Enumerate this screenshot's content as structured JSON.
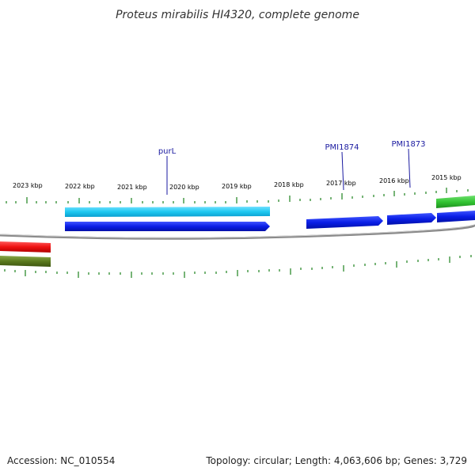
{
  "title": "Proteus mirabilis HI4320, complete genome",
  "footer": {
    "accession": "Accession: NC_010554",
    "summary": "Topology: circular; Length: 4,063,606 bp; Genes: 3,729"
  },
  "scale_labels": [
    "2023 kbp",
    "2022 kbp",
    "2021 kbp",
    "2020 kbp",
    "2019 kbp",
    "2018 kbp",
    "2017 kbp",
    "2016 kbp",
    "2015 kbp"
  ],
  "gene_labels": [
    "purL",
    "PMI1874",
    "PMI1873"
  ],
  "colors": {
    "backbone": "#8a8a8a",
    "tick": "#2e8b2e",
    "cds_forward": "#0a1ee6",
    "gene_light": "#1ec8f0",
    "gene_green": "#33c433",
    "gene_red": "#ee1111",
    "gene_olive": "#5b7a1e",
    "label_line": "#1a1aa0"
  }
}
